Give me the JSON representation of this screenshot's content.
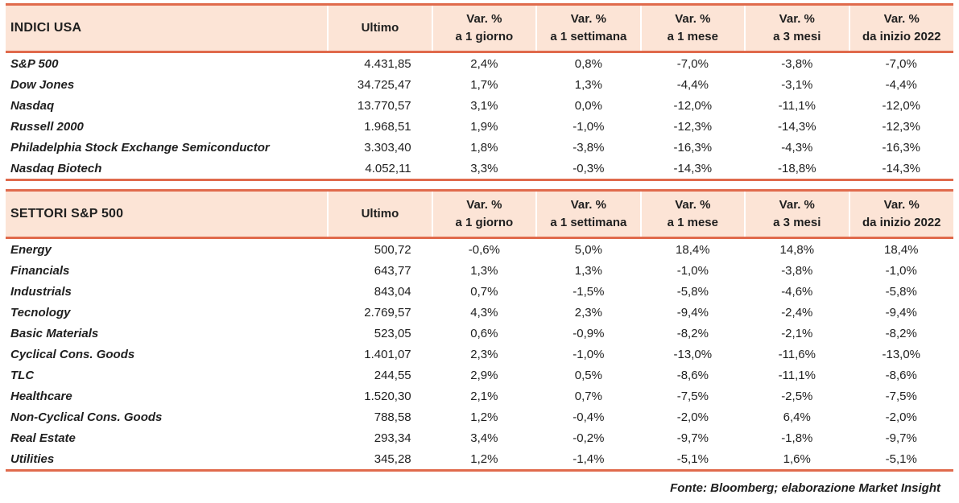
{
  "columns": {
    "ultimo": "Ultimo",
    "var_label": "Var. %",
    "periods": [
      "a 1 giorno",
      "a 1 settimana",
      "a 1 mese",
      "a 3 mesi",
      "da inizio 2022"
    ]
  },
  "sections": [
    {
      "title": "INDICI USA",
      "rows": [
        {
          "name": "S&P 500",
          "ultimo": "4.431,85",
          "values": [
            "2,4%",
            "0,8%",
            "-7,0%",
            "-3,8%",
            "-7,0%"
          ]
        },
        {
          "name": "Dow Jones",
          "ultimo": "34.725,47",
          "values": [
            "1,7%",
            "1,3%",
            "-4,4%",
            "-3,1%",
            "-4,4%"
          ]
        },
        {
          "name": "Nasdaq",
          "ultimo": "13.770,57",
          "values": [
            "3,1%",
            "0,0%",
            "-12,0%",
            "-11,1%",
            "-12,0%"
          ]
        },
        {
          "name": "Russell 2000",
          "ultimo": "1.968,51",
          "values": [
            "1,9%",
            "-1,0%",
            "-12,3%",
            "-14,3%",
            "-12,3%"
          ]
        },
        {
          "name": "Philadelphia Stock Exchange Semiconductor",
          "ultimo": "3.303,40",
          "values": [
            "1,8%",
            "-3,8%",
            "-16,3%",
            "-4,3%",
            "-16,3%"
          ]
        },
        {
          "name": "Nasdaq Biotech",
          "ultimo": "4.052,11",
          "values": [
            "3,3%",
            "-0,3%",
            "-14,3%",
            "-18,8%",
            "-14,3%"
          ]
        }
      ]
    },
    {
      "title": "SETTORI S&P 500",
      "rows": [
        {
          "name": "Energy",
          "ultimo": "500,72",
          "values": [
            "-0,6%",
            "5,0%",
            "18,4%",
            "14,8%",
            "18,4%"
          ]
        },
        {
          "name": "Financials",
          "ultimo": "643,77",
          "values": [
            "1,3%",
            "1,3%",
            "-1,0%",
            "-3,8%",
            "-1,0%"
          ]
        },
        {
          "name": "Industrials",
          "ultimo": "843,04",
          "values": [
            "0,7%",
            "-1,5%",
            "-5,8%",
            "-4,6%",
            "-5,8%"
          ]
        },
        {
          "name": "Tecnology",
          "ultimo": "2.769,57",
          "values": [
            "4,3%",
            "2,3%",
            "-9,4%",
            "-2,4%",
            "-9,4%"
          ]
        },
        {
          "name": "Basic Materials",
          "ultimo": "523,05",
          "values": [
            "0,6%",
            "-0,9%",
            "-8,2%",
            "-2,1%",
            "-8,2%"
          ]
        },
        {
          "name": "Cyclical Cons. Goods",
          "ultimo": "1.401,07",
          "values": [
            "2,3%",
            "-1,0%",
            "-13,0%",
            "-11,6%",
            "-13,0%"
          ]
        },
        {
          "name": "TLC",
          "ultimo": "244,55",
          "values": [
            "2,9%",
            "0,5%",
            "-8,6%",
            "-11,1%",
            "-8,6%"
          ]
        },
        {
          "name": "Healthcare",
          "ultimo": "1.520,30",
          "values": [
            "2,1%",
            "0,7%",
            "-7,5%",
            "-2,5%",
            "-7,5%"
          ]
        },
        {
          "name": "Non-Cyclical Cons. Goods",
          "ultimo": "788,58",
          "values": [
            "1,2%",
            "-0,4%",
            "-2,0%",
            "6,4%",
            "-2,0%"
          ]
        },
        {
          "name": "Real Estate",
          "ultimo": "293,34",
          "values": [
            "3,4%",
            "-0,2%",
            "-9,7%",
            "-1,8%",
            "-9,7%"
          ]
        },
        {
          "name": "Utilities",
          "ultimo": "345,28",
          "values": [
            "1,2%",
            "-1,4%",
            "-5,1%",
            "1,6%",
            "-5,1%"
          ]
        }
      ]
    }
  ],
  "footer": "Fonte: Bloomberg; elaborazione Market Insight",
  "colors": {
    "header_bg": "#fce4d6",
    "border_line": "#e06a4c",
    "text": "#1f1f1f"
  }
}
